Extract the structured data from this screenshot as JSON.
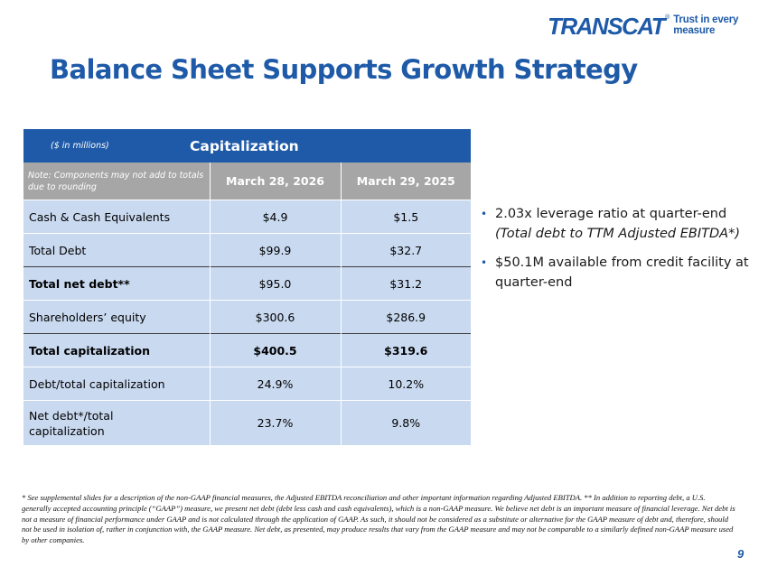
{
  "logo": {
    "wordmark": "TRANSCAT",
    "registered": "®",
    "tagline": "Trust in every measure"
  },
  "title": "Balance Sheet Supports Growth Strategy",
  "table": {
    "units_note": "($ in millions)",
    "caption": "Capitalization",
    "rounding_note": "Note: Components may not add to totals due to rounding",
    "columns": [
      "March 28, 2026",
      "March 29, 2025"
    ],
    "rows": [
      {
        "label": "Cash & Cash Equivalents",
        "values": [
          "$4.9",
          "$1.5"
        ]
      },
      {
        "label": "Total Debt",
        "values": [
          "$99.9",
          "$32.7"
        ]
      },
      {
        "label": "Total net debt**",
        "values": [
          "$95.0",
          "$31.2"
        ]
      },
      {
        "label": "Shareholders’ equity",
        "values": [
          "$300.6",
          "$286.9"
        ]
      },
      {
        "label": "Total capitalization",
        "values": [
          "$400.5",
          "$319.6"
        ]
      },
      {
        "label": "Debt/total capitalization",
        "values": [
          "24.9%",
          "10.2%"
        ]
      },
      {
        "label": "Net debt*/total capitalization",
        "values": [
          "23.7%",
          "9.8%"
        ]
      }
    ]
  },
  "bullets": [
    {
      "text": "2.03x leverage ratio at quarter-end",
      "sub": "(Total debt to TTM Adjusted EBITDA*)"
    },
    {
      "text": "$50.1M available from credit facility at quarter-end"
    }
  ],
  "bullet_glyph": "•",
  "footnote": "* See supplemental slides for a description of the non-GAAP financial measures, the Adjusted EBITDA reconciliation and other important information regarding Adjusted EBITDA. ** In addition to reporting debt, a U.S. generally accepted accounting principle (“GAAP”) measure, we present net debt (debt less cash and cash equivalents), which is a non-GAAP measure. We believe net debt is an important measure of financial leverage. Net debt is not a measure of financial performance under GAAP and is not calculated through the application of GAAP. As such, it should not be considered as a substitute or alternative for the GAAP measure of debt and, therefore, should not be used in isolation of, rather in conjunction with, the GAAP measure. Net debt, as presented, may produce results that vary from the GAAP measure and may not be comparable to a similarly defined non-GAAP measure used by other companies.",
  "page_number": "9"
}
